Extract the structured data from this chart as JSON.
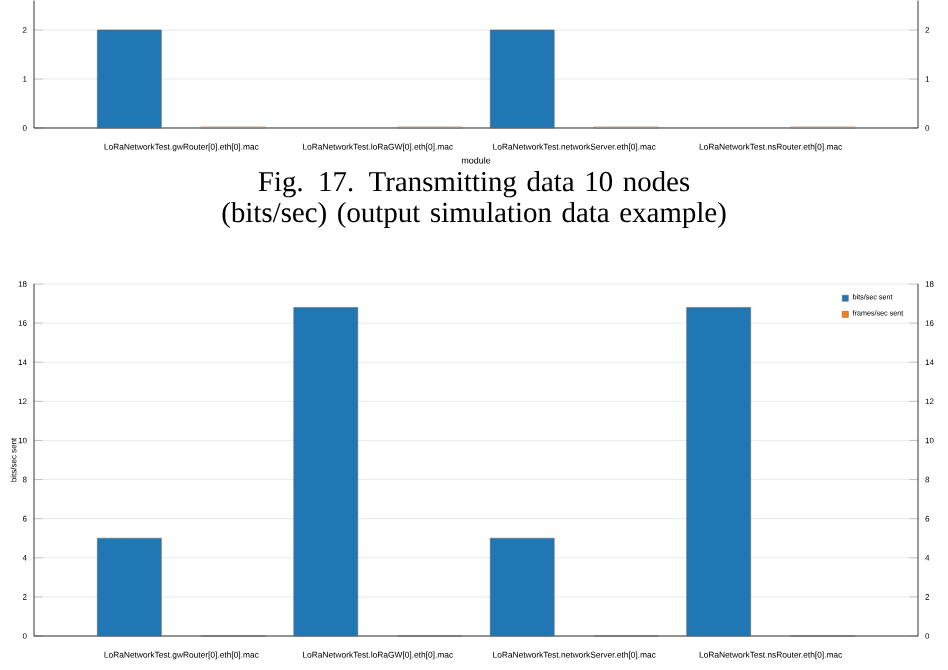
{
  "chart_data": [
    {
      "type": "bar",
      "categories": [
        "LoRaNetworkTest.gwRouter[0].eth[0].mac",
        "LoRaNetworkTest.loRaGW[0].eth[0].mac",
        "LoRaNetworkTest.networkServer.eth[0].mac",
        "LoRaNetworkTest.nsRouter.eth[0].mac"
      ],
      "series": [
        {
          "color": "#1f77b4",
          "values": [
            2,
            null,
            2,
            null
          ]
        },
        {
          "color": "#f4b183",
          "values": [
            0.02,
            0.02,
            0.02,
            0.02
          ]
        }
      ],
      "xlabel": "module",
      "ylim": [
        0,
        2.6
      ],
      "yticks": [
        0,
        1,
        2
      ],
      "y2lim": [
        0,
        2.6
      ],
      "y2ticks": [
        0,
        1,
        2
      ],
      "grid": "y",
      "annotations": [
        "Fig. 17. Transmitting data 10 nodes (bits/sec) (output simulation data example)"
      ]
    },
    {
      "type": "bar",
      "categories": [
        "LoRaNetworkTest.gwRouter[0].eth[0].mac",
        "LoRaNetworkTest.loRaGW[0].eth[0].mac",
        "LoRaNetworkTest.networkServer.eth[0].mac",
        "LoRaNetworkTest.nsRouter.eth[0].mac"
      ],
      "series": [
        {
          "name": "bits/sec sent",
          "color": "#1f77b4",
          "values": [
            5.0,
            16.8,
            5.0,
            16.8
          ]
        },
        {
          "name": "frames/sec sent",
          "color": "#ff7f0e",
          "values": [
            0,
            0,
            0,
            0
          ]
        }
      ],
      "ylabel": "bits/sec sent",
      "ylim": [
        0,
        18
      ],
      "yticks": [
        0,
        2,
        4,
        6,
        8,
        10,
        12,
        14,
        16,
        18
      ],
      "y2lim": [
        0,
        18
      ],
      "y2ticks": [
        0,
        2,
        4,
        6,
        8,
        10,
        12,
        14,
        16,
        18
      ],
      "grid": "y",
      "legend": "top right"
    }
  ]
}
